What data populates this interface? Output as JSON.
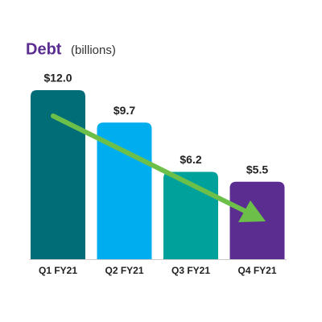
{
  "chart_data": {
    "type": "bar",
    "title": "Debt",
    "subtitle": "(billions)",
    "title_color": "#5b2d90",
    "categories": [
      "Q1 FY21",
      "Q2 FY21",
      "Q3 FY21",
      "Q4 FY21"
    ],
    "values": [
      12.0,
      9.7,
      6.2,
      5.5
    ],
    "value_labels": [
      "$12.0",
      "$9.7",
      "$6.2",
      "$5.5"
    ],
    "colors": [
      "#006d77",
      "#00aeef",
      "#00a19a",
      "#5b2d90"
    ]
  }
}
